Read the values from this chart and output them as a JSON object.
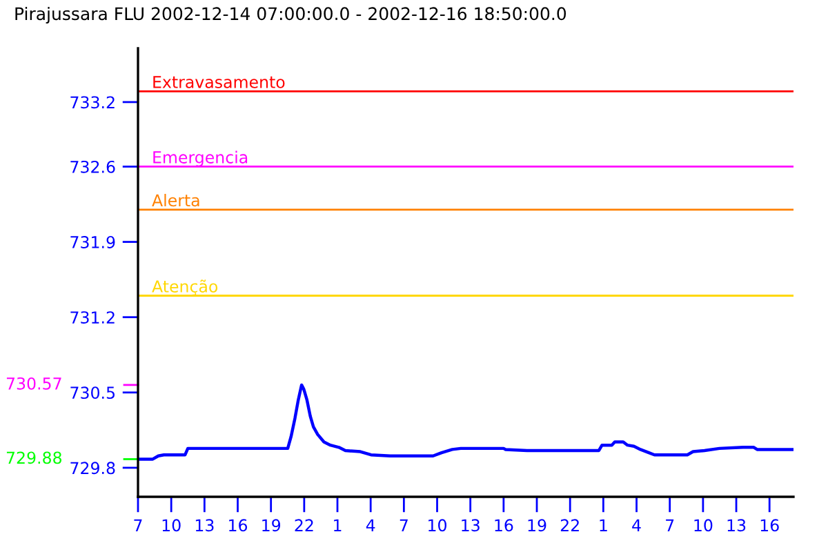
{
  "chart_data": {
    "type": "line",
    "title": "Pirajussara FLU 2002-12-14 07:00:00.0 - 2002-12-16 18:50:00.0",
    "x": [
      "2002-12-14T07:00",
      "2002-12-14T08:20",
      "2002-12-14T08:50",
      "2002-12-14T09:20",
      "2002-12-14T11:15",
      "2002-12-14T11:30",
      "2002-12-14T20:31",
      "2002-12-14T20:49",
      "2002-12-14T21:10",
      "2002-12-14T21:28",
      "2002-12-14T21:46",
      "2002-12-14T21:58",
      "2002-12-14T22:15",
      "2002-12-14T22:33",
      "2002-12-14T22:50",
      "2002-12-14T23:13",
      "2002-12-14T23:47",
      "2002-12-15T00:22",
      "2002-12-15T01:08",
      "2002-12-15T01:43",
      "2002-12-15T03:04",
      "2002-12-15T04:02",
      "2002-12-15T05:46",
      "2002-12-15T09:38",
      "2002-12-15T10:24",
      "2002-12-15T11:22",
      "2002-12-15T12:08",
      "2002-12-15T16:00",
      "2002-12-15T16:11",
      "2002-12-15T18:07",
      "2002-12-16T00:36",
      "2002-12-16T00:53",
      "2002-12-16T01:46",
      "2002-12-16T02:02",
      "2002-12-16T02:48",
      "2002-12-16T03:11",
      "2002-12-16T03:46",
      "2002-12-16T04:21",
      "2002-12-16T05:07",
      "2002-12-16T05:37",
      "2002-12-16T08:35",
      "2002-12-16T09:06",
      "2002-12-16T10:08",
      "2002-12-16T11:29",
      "2002-12-16T13:37",
      "2002-12-16T14:35",
      "2002-12-16T14:53",
      "2002-12-16T18:08"
    ],
    "series": [
      {
        "color": "#0000ff",
        "values": [
          729.88,
          729.88,
          729.91,
          729.92,
          729.92,
          729.98,
          729.98,
          730.09,
          730.26,
          730.43,
          730.57,
          730.53,
          730.43,
          730.28,
          730.18,
          730.11,
          730.04,
          730.01,
          729.99,
          729.96,
          729.95,
          729.92,
          729.91,
          729.91,
          729.94,
          729.97,
          729.98,
          729.98,
          729.97,
          729.96,
          729.96,
          730.01,
          730.01,
          730.04,
          730.04,
          730.01,
          730.0,
          729.97,
          729.94,
          729.92,
          729.92,
          729.95,
          729.96,
          729.98,
          729.99,
          729.99,
          729.97,
          729.97
        ]
      }
    ],
    "xlim": [
      "2002-12-14T07:00",
      "2002-12-16T18:10"
    ],
    "xticks": [
      {
        "value": "2002-12-14T07:00",
        "label": "7"
      },
      {
        "value": "2002-12-14T10:00",
        "label": "10"
      },
      {
        "value": "2002-12-14T13:00",
        "label": "13"
      },
      {
        "value": "2002-12-14T16:00",
        "label": "16"
      },
      {
        "value": "2002-12-14T19:00",
        "label": "19"
      },
      {
        "value": "2002-12-14T22:00",
        "label": "22"
      },
      {
        "value": "2002-12-15T01:00",
        "label": "1"
      },
      {
        "value": "2002-12-15T04:00",
        "label": "4"
      },
      {
        "value": "2002-12-15T07:00",
        "label": "7"
      },
      {
        "value": "2002-12-15T10:00",
        "label": "10"
      },
      {
        "value": "2002-12-15T13:00",
        "label": "13"
      },
      {
        "value": "2002-12-15T16:00",
        "label": "16"
      },
      {
        "value": "2002-12-15T19:00",
        "label": "19"
      },
      {
        "value": "2002-12-15T22:00",
        "label": "22"
      },
      {
        "value": "2002-12-16T01:00",
        "label": "1"
      },
      {
        "value": "2002-12-16T04:00",
        "label": "4"
      },
      {
        "value": "2002-12-16T07:00",
        "label": "7"
      },
      {
        "value": "2002-12-16T10:00",
        "label": "10"
      },
      {
        "value": "2002-12-16T13:00",
        "label": "13"
      },
      {
        "value": "2002-12-16T16:00",
        "label": "16"
      }
    ],
    "ylim": [
      729.53,
      733.7
    ],
    "yticks": [
      729.8,
      730.5,
      731.2,
      731.9,
      732.6,
      733.2
    ],
    "ref_lines": [
      {
        "axis": "y",
        "value": 733.3,
        "label": "Extravasamento",
        "color": "#ff0000"
      },
      {
        "axis": "y",
        "value": 732.6,
        "label": "Emergencia",
        "color": "#ff00ff"
      },
      {
        "axis": "y",
        "value": 732.2,
        "label": "Alerta",
        "color": "#ff8000"
      },
      {
        "axis": "y",
        "value": 731.4,
        "label": "Atenção",
        "color": "#ffd700"
      }
    ],
    "annotations": [
      "730.57",
      "729.88"
    ],
    "line_style": "solid",
    "marker": "none"
  }
}
